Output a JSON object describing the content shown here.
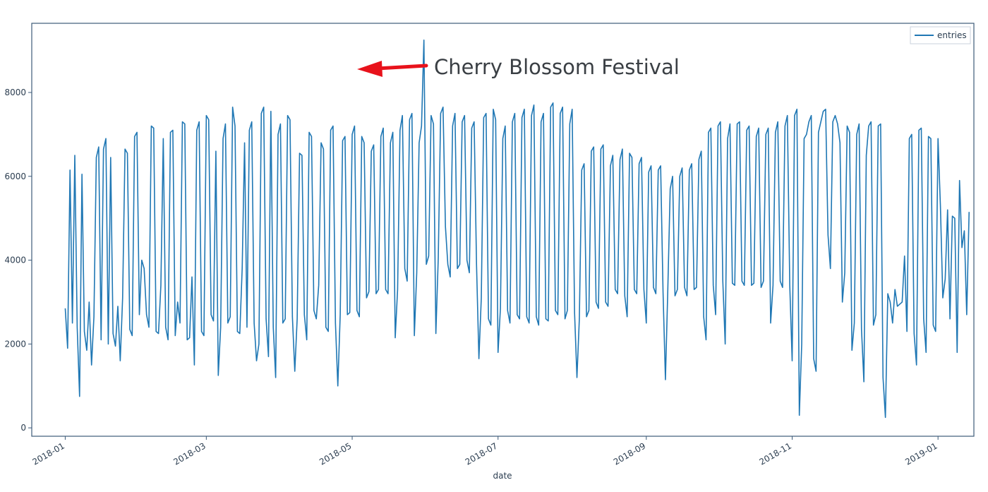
{
  "chart_data": {
    "type": "line",
    "xlabel": "date",
    "ylabel": "",
    "xlim": [
      "2017-12-18",
      "2019-01-16"
    ],
    "ylim": [
      -200,
      9650
    ],
    "x_ticks": [
      "2018-01",
      "2018-03",
      "2018-05",
      "2018-07",
      "2018-09",
      "2018-11",
      "2019-01"
    ],
    "y_ticks": [
      0,
      2000,
      4000,
      6000,
      8000
    ],
    "legend": {
      "position": "top-right",
      "entries": [
        "entries"
      ]
    },
    "grid": false,
    "colors": {
      "series": "#1f77b4",
      "axis": "#3c5a78",
      "annotation_arrow": "#e8121b"
    },
    "annotation": {
      "text": "Cherry Blossom Festival",
      "x": "2018-04-21",
      "y": 9250
    },
    "series": [
      {
        "name": "entries",
        "x_start": "2018-01-01",
        "x_step_days": 1,
        "values": [
          2850,
          1900,
          6150,
          2500,
          6500,
          2400,
          750,
          6050,
          2300,
          1850,
          3000,
          1500,
          2650,
          6450,
          6700,
          2100,
          6650,
          6900,
          2000,
          6450,
          2250,
          1950,
          2900,
          1600,
          3100,
          6650,
          6550,
          2350,
          2200,
          6950,
          7050,
          2700,
          4000,
          3800,
          2700,
          2400,
          7200,
          7150,
          2300,
          2250,
          3400,
          6900,
          2400,
          2100,
          7050,
          7100,
          2200,
          3000,
          2500,
          7300,
          7250,
          2100,
          2150,
          3600,
          1500,
          7100,
          7300,
          2300,
          2200,
          7450,
          7350,
          2700,
          2550,
          6600,
          1250,
          2400,
          6900,
          7250,
          2500,
          2650,
          7650,
          7200,
          2300,
          2250,
          3800,
          6800,
          2400,
          7100,
          7300,
          2500,
          1600,
          2000,
          7500,
          7650,
          2600,
          1700,
          7550,
          2400,
          1200,
          7000,
          7250,
          2500,
          2600,
          7450,
          7350,
          2650,
          1350,
          2600,
          6550,
          6500,
          2700,
          2100,
          7050,
          6950,
          2800,
          2600,
          3400,
          6800,
          6650,
          2400,
          2300,
          7100,
          7200,
          2500,
          1000,
          2700,
          6850,
          6950,
          2700,
          2750,
          7000,
          7200,
          2800,
          2650,
          6950,
          6800,
          3100,
          3250,
          6600,
          6750,
          3200,
          3300,
          6950,
          7150,
          3300,
          3200,
          6800,
          7050,
          2150,
          3300,
          7100,
          7450,
          3800,
          3500,
          7350,
          7500,
          2200,
          3700,
          6800,
          7200,
          9250,
          3900,
          4100,
          7450,
          7250,
          2250,
          4050,
          7500,
          7650,
          4800,
          3900,
          3600,
          7200,
          7500,
          3800,
          3900,
          7300,
          7450,
          4000,
          3700,
          7150,
          7300,
          3900,
          1650,
          3100,
          7400,
          7500,
          2600,
          2450,
          7600,
          7350,
          1800,
          2850,
          6900,
          7200,
          2800,
          2500,
          7300,
          7500,
          2700,
          2600,
          7400,
          7600,
          2650,
          2500,
          7450,
          7700,
          2650,
          2450,
          7300,
          7500,
          2600,
          2550,
          7650,
          7750,
          2800,
          2700,
          7500,
          7650,
          2600,
          2800,
          7250,
          7600,
          2750,
          1200,
          2600,
          6150,
          6300,
          2650,
          2800,
          6600,
          6700,
          3000,
          2850,
          6650,
          6750,
          3000,
          2900,
          6250,
          6500,
          3300,
          3200,
          6400,
          6650,
          3150,
          2650,
          6550,
          6450,
          3300,
          3200,
          6300,
          6450,
          3300,
          2500,
          6100,
          6250,
          3350,
          3200,
          6150,
          6250,
          3250,
          1150,
          3300,
          5700,
          6000,
          3150,
          3300,
          6000,
          6200,
          3350,
          3150,
          6150,
          6300,
          3300,
          3350,
          6400,
          6600,
          2650,
          2100,
          7050,
          7150,
          3400,
          2700,
          7200,
          7300,
          3500,
          2000,
          6900,
          7250,
          3450,
          3400,
          7250,
          7300,
          3500,
          3400,
          7100,
          7200,
          3400,
          3450,
          6950,
          7150,
          3350,
          3500,
          7000,
          7150,
          2500,
          3400,
          7050,
          7300,
          3500,
          3350,
          7200,
          7450,
          3400,
          1600,
          7450,
          7600,
          300,
          2000,
          6900,
          7000,
          7300,
          7450,
          1650,
          1350,
          7050,
          7300,
          7550,
          7600,
          4600,
          3800,
          7300,
          7450,
          7250,
          6800,
          3000,
          3700,
          7200,
          7050,
          1850,
          2500,
          7000,
          7250,
          2350,
          1100,
          6500,
          7200,
          7300,
          2450,
          2700,
          7200,
          7250,
          1200,
          250,
          3200,
          3000,
          2500,
          3300,
          2900,
          2950,
          3000,
          4100,
          2300,
          6900,
          7000,
          2250,
          1500,
          7100,
          7150,
          2600,
          1800,
          6950,
          6900,
          2450,
          2300,
          6900,
          5300,
          3100,
          3550,
          5200,
          2600,
          5050,
          5000,
          1800,
          5900,
          4300,
          4700,
          2700,
          5150
        ]
      }
    ]
  }
}
